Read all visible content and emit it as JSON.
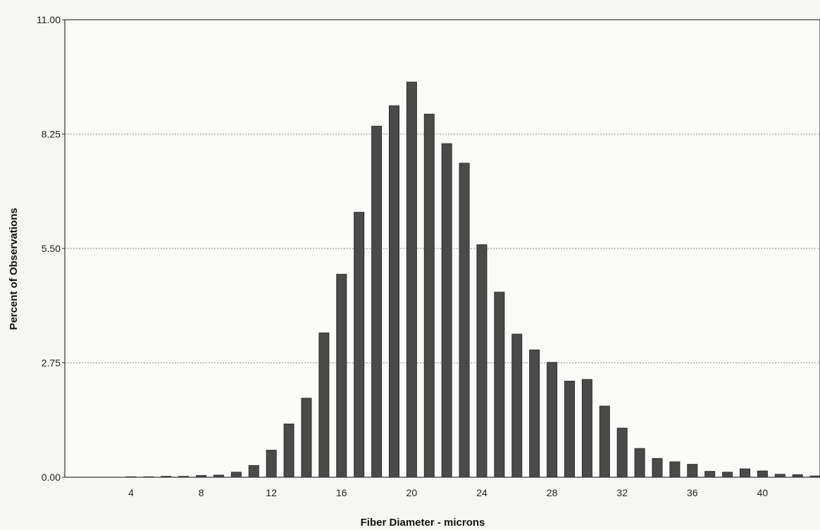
{
  "chart_data": {
    "type": "bar",
    "xlabel": "Fiber Diameter - microns",
    "ylabel": "Percent of Observations",
    "xlim": [
      0,
      43
    ],
    "ylim": [
      0,
      11
    ],
    "grid": true,
    "x_ticks": [
      "4",
      "8",
      "12",
      "16",
      "20",
      "24",
      "28",
      "32",
      "36",
      "40"
    ],
    "y_ticks": [
      "0.00",
      "2.75",
      "5.50",
      "8.25",
      "11.00"
    ],
    "x": [
      4,
      5,
      6,
      7,
      8,
      9,
      10,
      11,
      12,
      13,
      14,
      15,
      16,
      17,
      18,
      19,
      20,
      21,
      22,
      23,
      24,
      25,
      26,
      27,
      28,
      29,
      30,
      31,
      32,
      33,
      34,
      35,
      36,
      37,
      38,
      39,
      40,
      41,
      42,
      43
    ],
    "values": [
      0.01,
      0.01,
      0.02,
      0.02,
      0.04,
      0.05,
      0.12,
      0.28,
      0.65,
      1.28,
      1.9,
      3.47,
      4.88,
      6.37,
      8.44,
      8.93,
      9.5,
      8.73,
      8.02,
      7.55,
      5.59,
      4.45,
      3.44,
      3.06,
      2.76,
      2.31,
      2.35,
      1.71,
      1.18,
      0.69,
      0.45,
      0.37,
      0.31,
      0.14,
      0.12,
      0.2,
      0.15,
      0.07,
      0.06,
      0.03
    ],
    "bar_color": "#4a4a4a"
  }
}
